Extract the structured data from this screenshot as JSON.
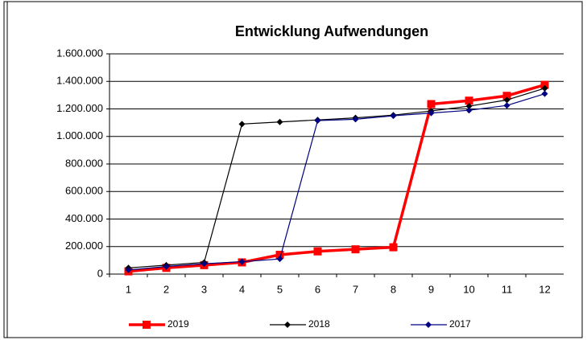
{
  "chart_data": {
    "type": "line",
    "title": "Entwicklung Aufwendungen",
    "categories": [
      "1",
      "2",
      "3",
      "4",
      "5",
      "6",
      "7",
      "8",
      "9",
      "10",
      "11",
      "12"
    ],
    "series": [
      {
        "name": "2019",
        "color": "#ff0000",
        "values": [
          20000,
          45000,
          65000,
          85000,
          140000,
          165000,
          180000,
          195000,
          1235000,
          1260000,
          1295000,
          1375000
        ]
      },
      {
        "name": "2018",
        "color": "#000000",
        "values": [
          45000,
          65000,
          85000,
          1090000,
          1105000,
          1120000,
          1135000,
          1155000,
          1185000,
          1220000,
          1265000,
          1350000
        ]
      },
      {
        "name": "2017",
        "color": "#000080",
        "values": [
          30000,
          55000,
          75000,
          90000,
          110000,
          1115000,
          1125000,
          1150000,
          1170000,
          1190000,
          1225000,
          1310000
        ]
      }
    ],
    "ylim": [
      0,
      1600000
    ],
    "yticks": [
      0,
      {
        "value": 200000,
        "label": "200.000"
      },
      {
        "value": 400000,
        "label": "400.000"
      },
      {
        "value": 600000,
        "label": "600.000"
      },
      {
        "value": 800000,
        "label": "800.000"
      },
      {
        "value": 1000000,
        "label": "1.000.000"
      },
      {
        "value": 1200000,
        "label": "1.200.000"
      },
      {
        "value": 1400000,
        "label": "1.400.000"
      },
      {
        "value": 1600000,
        "label": "1.600.000"
      }
    ],
    "grid": true,
    "legend": "bottom"
  }
}
